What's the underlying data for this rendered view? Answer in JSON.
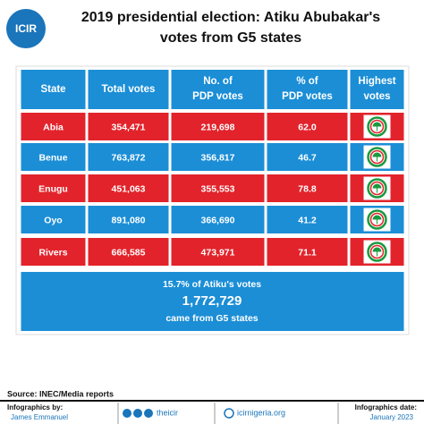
{
  "header": {
    "logo": "ICIR",
    "title_lines": [
      "2019 presidential election: Atiku Abubakar's",
      "votes from G5 states"
    ]
  },
  "table": {
    "header": [
      [
        "State"
      ],
      [
        "Total votes"
      ],
      [
        "No. of",
        "PDP votes"
      ],
      [
        "% of",
        "PDP votes"
      ],
      [
        "Highest",
        "votes"
      ]
    ],
    "rows": [
      [
        "Abia",
        "354,471",
        "219,698",
        "62.0"
      ],
      [
        "Benue",
        "763,872",
        "356,817",
        "46.7"
      ],
      [
        "Enugu",
        "451,063",
        "355,553",
        "78.8"
      ],
      [
        "Oyo",
        "891,080",
        "366,690",
        "41.2"
      ],
      [
        "Rivers",
        "666,585",
        "473,971",
        "71.1"
      ]
    ],
    "summary": [
      "15.7% of Atiku's votes",
      "1,772,729",
      "came from G5 states"
    ]
  },
  "source": "Source:  INEC/Media reports",
  "footer": {
    "credit_label": "Infographics by:",
    "credit_name": "James Emmanuel",
    "handle": "theicir",
    "website": "icirnigeria.org",
    "date_label": "Infographics date:",
    "date": "January 2023"
  }
}
